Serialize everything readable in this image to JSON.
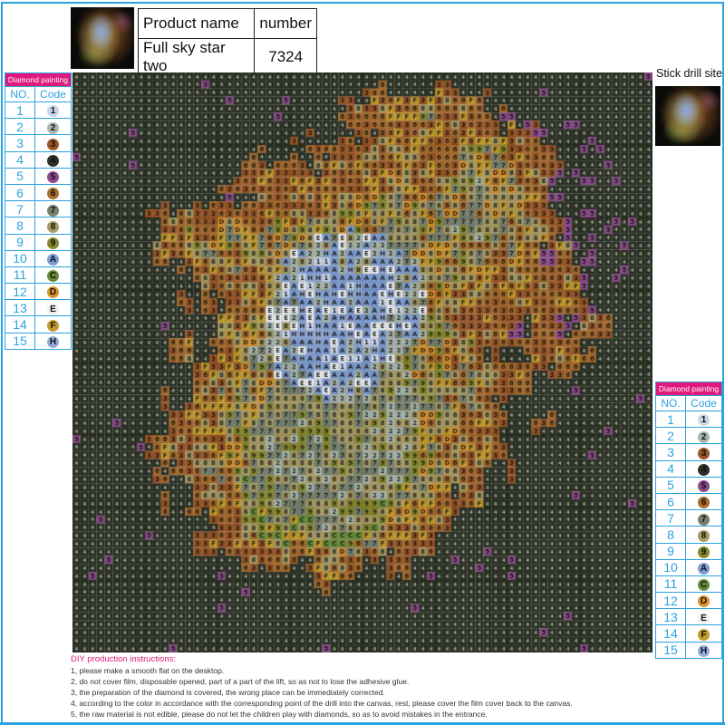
{
  "product_table": {
    "header_name": "Product name",
    "header_number": "number",
    "name": "Full sky star two",
    "number": "7324"
  },
  "stick_drill_label": "Stick drill site",
  "legend": {
    "title": "Diamond painting",
    "col_no": "NO.",
    "col_code": "Code",
    "items": [
      {
        "no": "1",
        "code": "1",
        "color": "#c9d5ea"
      },
      {
        "no": "2",
        "code": "2",
        "color": "#a9b7ab"
      },
      {
        "no": "3",
        "code": "3",
        "color": "#9a5526"
      },
      {
        "no": "4",
        "code": "4",
        "color": "#2b3124"
      },
      {
        "no": "5",
        "code": "5",
        "color": "#8c4a8c"
      },
      {
        "no": "6",
        "code": "6",
        "color": "#a86b2c"
      },
      {
        "no": "7",
        "code": "7",
        "color": "#76806e"
      },
      {
        "no": "8",
        "code": "8",
        "color": "#a99c62"
      },
      {
        "no": "9",
        "code": "9",
        "color": "#88892e"
      },
      {
        "no": "10",
        "code": "A",
        "color": "#7d9dd4"
      },
      {
        "no": "11",
        "code": "C",
        "color": "#668a38"
      },
      {
        "no": "12",
        "code": "D",
        "color": "#db922a"
      },
      {
        "no": "13",
        "code": "E",
        "color": "#eef0f4"
      },
      {
        "no": "14",
        "code": "F",
        "color": "#c39a2c"
      },
      {
        "no": "15",
        "code": "H",
        "color": "#93abd9"
      }
    ]
  },
  "instructions": {
    "title": "DIY production instructions:",
    "steps": [
      "1, please make a smooth flat on the desktop.",
      "2, do not cover film, disposable opened, part of a part of the lift, so as not to lose the adhesive glue.",
      "3, the preparation of the diamond is covered, the wrong place can be immediately corrected.",
      "4, according to the color in accordance with the corresponding point of the drill into the canvas, rest, please cover the film cover back to the canvas.",
      "5, the raw material is not edible, please do not let the children play with diamonds, so as to avoid mistakes in the entrance."
    ]
  },
  "accent_color": "#2aa3e0",
  "header_color": "#e0197d"
}
